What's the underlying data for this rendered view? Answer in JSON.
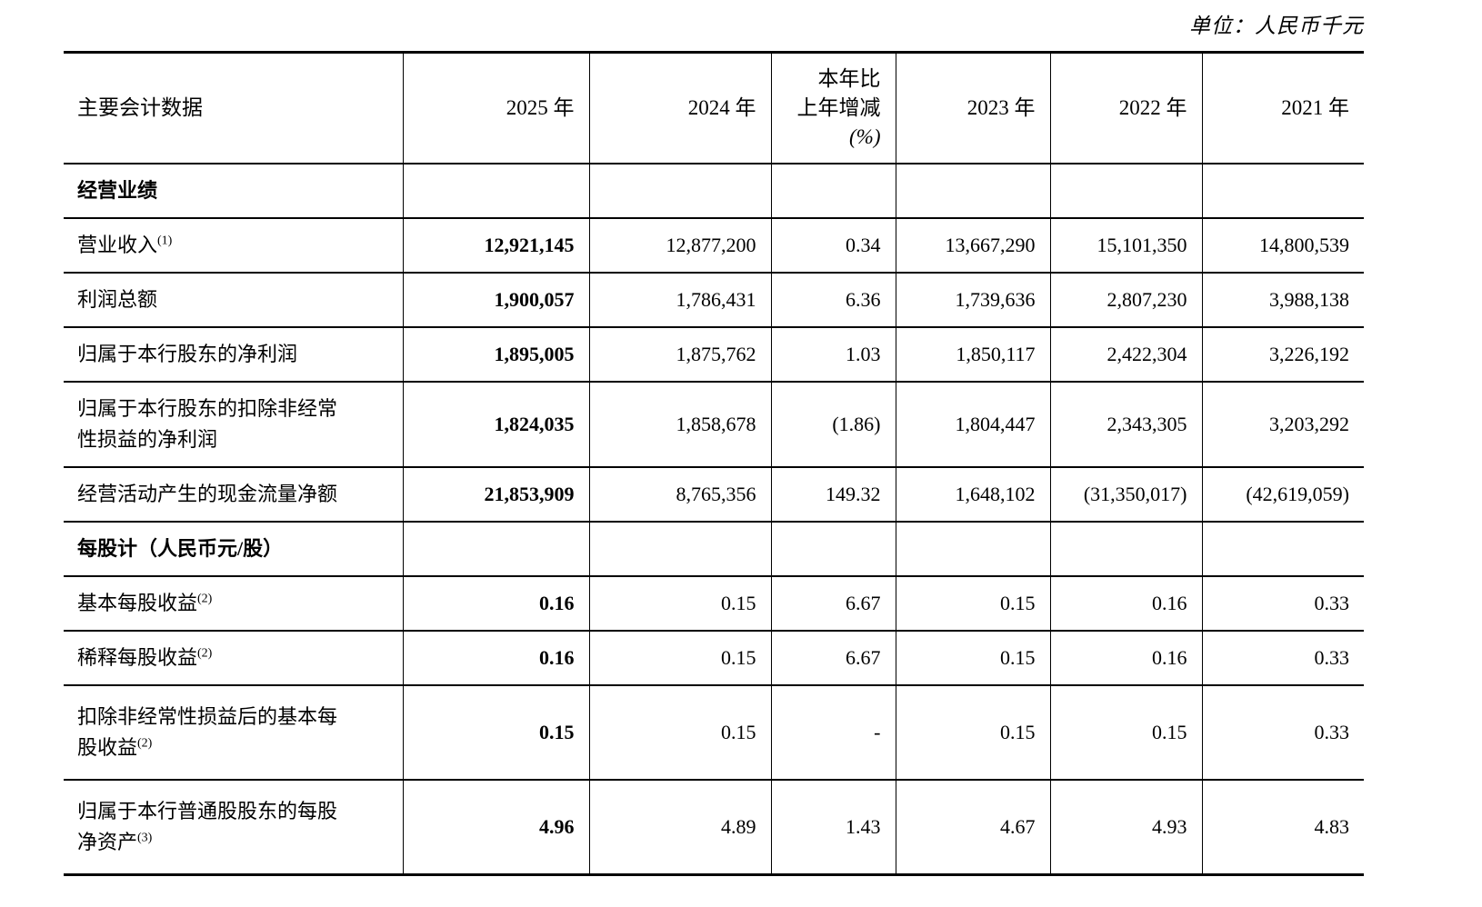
{
  "unit_note": "单位：人民币千元",
  "table": {
    "header_label": "主要会计数据",
    "year_headers": [
      "2025 年",
      "2024 年",
      "2023 年",
      "2022 年",
      "2021 年"
    ],
    "change_header_lines": [
      "本年比",
      "上年增减",
      "(%)"
    ],
    "rows": [
      {
        "type": "section",
        "label": "经营业绩"
      },
      {
        "type": "data",
        "label": "营业收入",
        "sup": "(1)",
        "values": [
          "12,921,145",
          "12,877,200",
          "0.34",
          "13,667,290",
          "15,101,350",
          "14,800,539"
        ]
      },
      {
        "type": "data",
        "label": "利润总额",
        "values": [
          "1,900,057",
          "1,786,431",
          "6.36",
          "1,739,636",
          "2,807,230",
          "3,988,138"
        ]
      },
      {
        "type": "data",
        "label": "归属于本行股东的净利润",
        "values": [
          "1,895,005",
          "1,875,762",
          "1.03",
          "1,850,117",
          "2,422,304",
          "3,226,192"
        ]
      },
      {
        "type": "data",
        "label": "归属于本行股东的扣除非经常\n性损益的净利润",
        "values": [
          "1,824,035",
          "1,858,678",
          "(1.86)",
          "1,804,447",
          "2,343,305",
          "3,203,292"
        ]
      },
      {
        "type": "data",
        "label": "经营活动产生的现金流量净额",
        "values": [
          "21,853,909",
          "8,765,356",
          "149.32",
          "1,648,102",
          "(31,350,017)",
          "(42,619,059)"
        ]
      },
      {
        "type": "section",
        "label": "每股计",
        "suffix": "（人民币元/股）"
      },
      {
        "type": "data",
        "label": "基本每股收益",
        "sup": "(2)",
        "values": [
          "0.16",
          "0.15",
          "6.67",
          "0.15",
          "0.16",
          "0.33"
        ]
      },
      {
        "type": "data",
        "label": "稀释每股收益",
        "sup": "(2)",
        "values": [
          "0.16",
          "0.15",
          "6.67",
          "0.15",
          "0.16",
          "0.33"
        ]
      },
      {
        "type": "data",
        "label": "扣除非经常性损益后的基本每\n股收益",
        "sup": "(2)",
        "values": [
          "0.15",
          "0.15",
          "-",
          "0.15",
          "0.15",
          "0.33"
        ]
      },
      {
        "type": "data",
        "label": "归属于本行普通股股东的每股\n净资产",
        "sup": "(3)",
        "values": [
          "4.96",
          "4.89",
          "1.43",
          "4.67",
          "4.93",
          "4.83"
        ]
      }
    ]
  }
}
